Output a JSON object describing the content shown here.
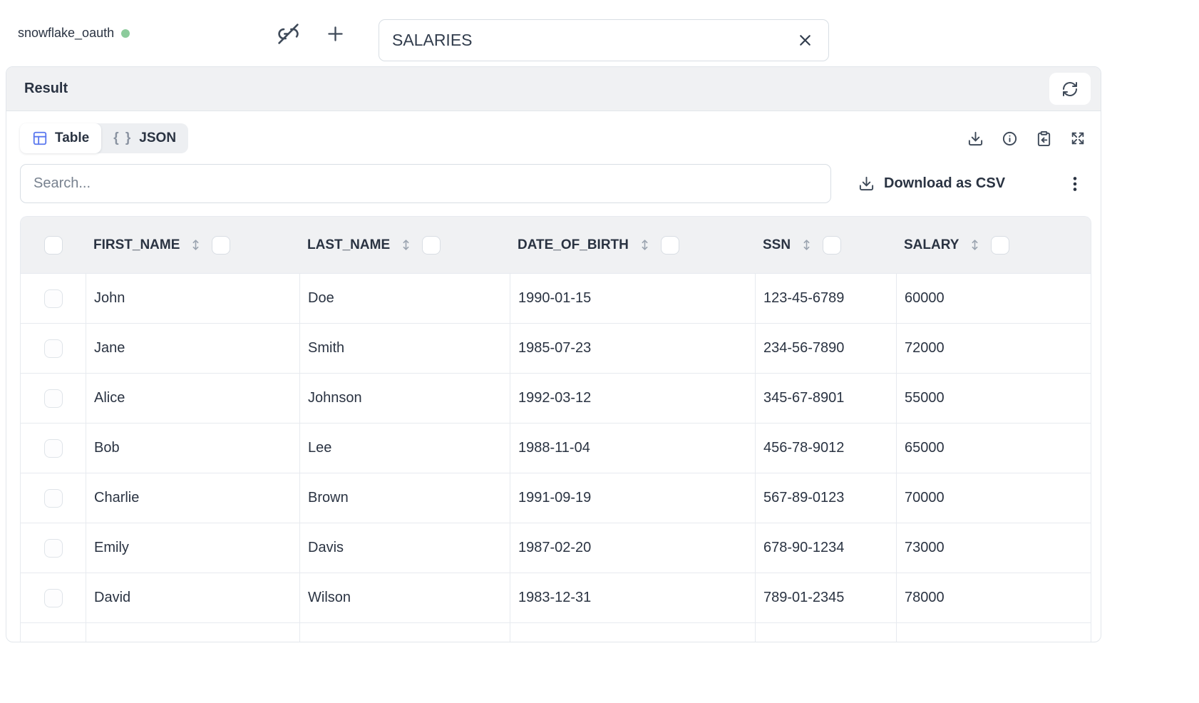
{
  "connection": {
    "name": "snowflake_oauth",
    "status": "connected"
  },
  "topbar": {
    "table_name_value": "SALARIES"
  },
  "panel": {
    "title": "Result"
  },
  "view_tabs": {
    "table_label": "Table",
    "json_label": "JSON",
    "json_glyph": "{ }"
  },
  "toolbar": {
    "search_placeholder": "Search...",
    "download_csv_label": "Download as CSV"
  },
  "table": {
    "columns": [
      "FIRST_NAME",
      "LAST_NAME",
      "DATE_OF_BIRTH",
      "SSN",
      "SALARY"
    ],
    "rows": [
      [
        "John",
        "Doe",
        "1990-01-15",
        "123-45-6789",
        "60000"
      ],
      [
        "Jane",
        "Smith",
        "1985-07-23",
        "234-56-7890",
        "72000"
      ],
      [
        "Alice",
        "Johnson",
        "1992-03-12",
        "345-67-8901",
        "55000"
      ],
      [
        "Bob",
        "Lee",
        "1988-11-04",
        "456-78-9012",
        "65000"
      ],
      [
        "Charlie",
        "Brown",
        "1991-09-19",
        "567-89-0123",
        "70000"
      ],
      [
        "Emily",
        "Davis",
        "1987-02-20",
        "678-90-1234",
        "73000"
      ],
      [
        "David",
        "Wilson",
        "1983-12-31",
        "789-01-2345",
        "78000"
      ]
    ],
    "partial_rows_below": 1
  },
  "colors": {
    "accent_blue": "#5A78EF",
    "status_green": "#8CCB9C",
    "text_dark": "#2A3342",
    "header_bg": "#F0F1F3",
    "border": "#E7EAEF"
  }
}
